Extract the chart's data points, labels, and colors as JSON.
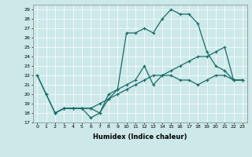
{
  "title": "",
  "xlabel": "Humidex (Indice chaleur)",
  "background_color": "#cce8e8",
  "grid_color": "#b0d4d4",
  "line_color": "#1a6b6b",
  "xlim": [
    -0.5,
    23.5
  ],
  "ylim": [
    17,
    29.5
  ],
  "yticks": [
    17,
    18,
    19,
    20,
    21,
    22,
    23,
    24,
    25,
    26,
    27,
    28,
    29
  ],
  "xticks": [
    0,
    1,
    2,
    3,
    4,
    5,
    6,
    7,
    8,
    9,
    10,
    11,
    12,
    13,
    14,
    15,
    16,
    17,
    18,
    19,
    20,
    21,
    22,
    23
  ],
  "line1_x": [
    0,
    1,
    2,
    3,
    4,
    5,
    6,
    7,
    8,
    9,
    10,
    11,
    12,
    13,
    14,
    15,
    16,
    17,
    18,
    19,
    20,
    21,
    22,
    23
  ],
  "line1_y": [
    22,
    20,
    18,
    18.5,
    18.5,
    18.5,
    17.5,
    18,
    20,
    20.5,
    26.5,
    26.5,
    27,
    26.5,
    28,
    29,
    28.5,
    28.5,
    27.5,
    24.5,
    23,
    22.5,
    21.5,
    21.5
  ],
  "line2_x": [
    0,
    1,
    2,
    3,
    4,
    5,
    6,
    7,
    8,
    9,
    10,
    11,
    12,
    13,
    14,
    15,
    16,
    17,
    18,
    19,
    20,
    21,
    22,
    23
  ],
  "line2_y": [
    22,
    20,
    18,
    18.5,
    18.5,
    18.5,
    18.5,
    18,
    19.5,
    20.5,
    21,
    21.5,
    23,
    21,
    22,
    22,
    21.5,
    21.5,
    21,
    21.5,
    22,
    22,
    21.5,
    21.5
  ],
  "line3_x": [
    2,
    3,
    4,
    5,
    6,
    7,
    8,
    9,
    10,
    11,
    12,
    13,
    14,
    15,
    16,
    17,
    18,
    19,
    20,
    21,
    22,
    23
  ],
  "line3_y": [
    18,
    18.5,
    18.5,
    18.5,
    18.5,
    19,
    19.5,
    20,
    20.5,
    21,
    21.5,
    22,
    22,
    22.5,
    23,
    23.5,
    24,
    24,
    24.5,
    25,
    21.5,
    21.5
  ]
}
